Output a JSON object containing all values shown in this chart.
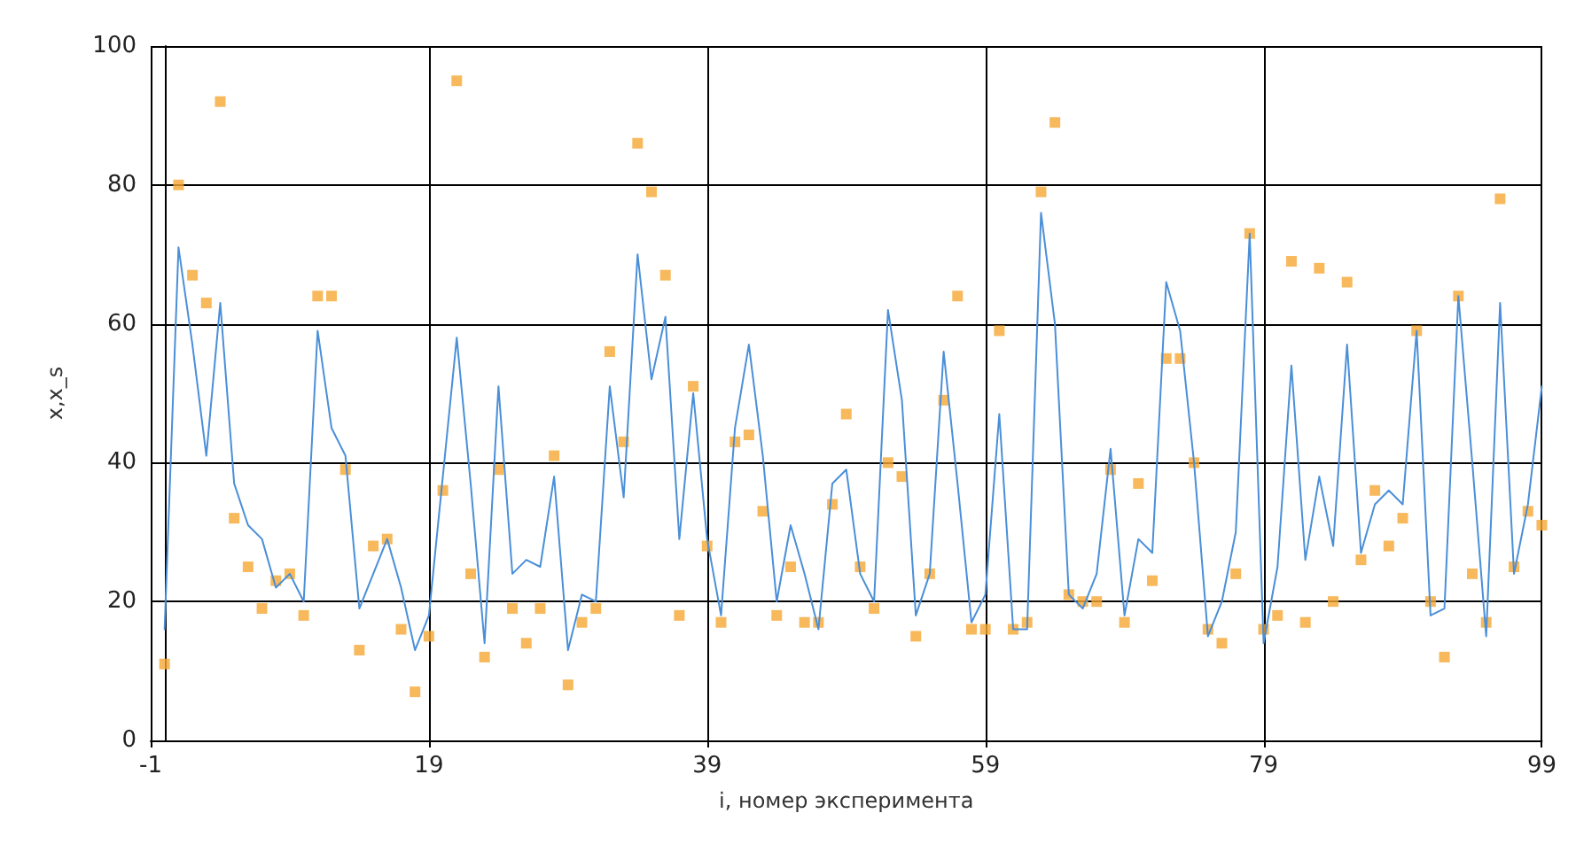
{
  "chart_data": {
    "type": "line",
    "xlabel": "i, номер эксперимента",
    "ylabel": "x,x_s",
    "x": [
      0,
      1,
      2,
      3,
      4,
      5,
      6,
      7,
      8,
      9,
      10,
      11,
      12,
      13,
      14,
      15,
      16,
      17,
      18,
      19,
      20,
      21,
      22,
      23,
      24,
      25,
      26,
      27,
      28,
      29,
      30,
      31,
      32,
      33,
      34,
      35,
      36,
      37,
      38,
      39,
      40,
      41,
      42,
      43,
      44,
      45,
      46,
      47,
      48,
      49,
      50,
      51,
      52,
      53,
      54,
      55,
      56,
      57,
      58,
      59,
      60,
      61,
      62,
      63,
      64,
      65,
      66,
      67,
      68,
      69,
      70,
      71,
      72,
      73,
      74,
      75,
      76,
      77,
      78,
      79,
      80,
      81,
      82,
      83,
      84,
      85,
      86,
      87,
      88,
      89,
      90,
      91,
      92,
      93,
      94,
      95,
      96,
      97,
      98,
      99
    ],
    "series": [
      {
        "color": "#4a8fd8",
        "marker": "none",
        "line_style": "solid",
        "values": [
          16,
          71,
          57,
          41,
          63,
          37,
          31,
          29,
          22,
          24,
          20,
          59,
          45,
          41,
          19,
          24,
          29,
          22,
          13,
          18,
          38,
          58,
          37,
          14,
          51,
          24,
          26,
          25,
          38,
          13,
          21,
          20,
          51,
          35,
          70,
          52,
          61,
          29,
          50,
          29,
          18,
          45,
          57,
          41,
          20,
          31,
          24,
          16,
          37,
          39,
          24,
          20,
          62,
          49,
          18,
          24,
          56,
          37,
          17,
          21,
          47,
          16,
          16,
          76,
          60,
          21,
          19,
          24,
          42,
          18,
          29,
          27,
          66,
          59,
          40,
          15,
          20,
          30,
          73,
          14,
          25,
          54,
          26,
          38,
          28,
          57,
          27,
          34,
          36,
          34,
          59,
          18,
          19,
          64,
          40,
          15,
          63,
          24,
          34,
          51
        ]
      },
      {
        "type": "scatter",
        "color": "#f5a833",
        "marker": "square",
        "values": [
          11,
          80,
          67,
          63,
          92,
          32,
          25,
          19,
          23,
          24,
          18,
          64,
          64,
          39,
          13,
          28,
          29,
          16,
          7,
          15,
          36,
          95,
          24,
          12,
          39,
          19,
          14,
          19,
          41,
          8,
          17,
          19,
          56,
          43,
          86,
          79,
          67,
          18,
          51,
          28,
          17,
          43,
          44,
          33,
          18,
          25,
          17,
          17,
          34,
          47,
          25,
          19,
          40,
          38,
          15,
          24,
          49,
          64,
          16,
          16,
          59,
          16,
          17,
          79,
          89,
          21,
          20,
          20,
          39,
          17,
          37,
          23,
          55,
          55,
          40,
          16,
          14,
          24,
          73,
          16,
          18,
          69,
          17,
          68,
          20,
          66,
          26,
          36,
          28,
          32,
          59,
          20,
          12,
          64,
          24,
          17,
          78,
          25,
          33,
          31
        ]
      }
    ],
    "xlim": [
      -1,
      99
    ],
    "xticks": [
      -1,
      19,
      39,
      59,
      79,
      99
    ],
    "ylim": [
      0,
      100
    ],
    "yticks": [
      0,
      20,
      40,
      60,
      80,
      100
    ],
    "grid": true
  }
}
